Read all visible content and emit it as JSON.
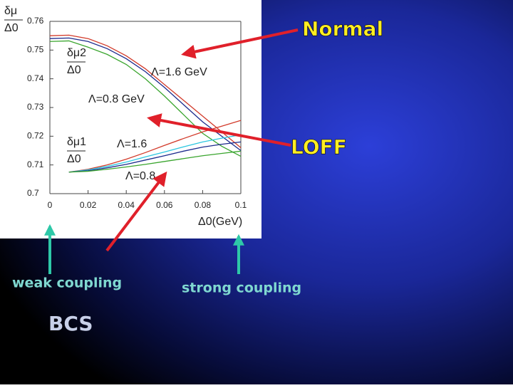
{
  "chart_data": {
    "type": "line",
    "y_label": {
      "numerator": "δμ",
      "denominator": "Δ0"
    },
    "x_label": "Δ0(GeV)",
    "x": [
      0,
      0.01,
      0.02,
      0.03,
      0.04,
      0.05,
      0.06,
      0.07,
      0.08,
      0.09,
      0.1
    ],
    "xlim": [
      0,
      0.1
    ],
    "xticks": [
      0,
      0.02,
      0.04,
      0.06,
      0.08,
      0.1
    ],
    "ylim": [
      0.7,
      0.76
    ],
    "yticks": [
      0.7,
      0.71,
      0.72,
      0.73,
      0.74,
      0.75,
      0.76
    ],
    "series": [
      {
        "color": "#d23a2a",
        "values": [
          0.755,
          0.7552,
          0.754,
          0.7515,
          0.748,
          0.7435,
          0.738,
          0.7325,
          0.727,
          0.7215,
          0.716
        ]
      },
      {
        "color": "#1c2a8c",
        "values": [
          0.754,
          0.7542,
          0.753,
          0.7505,
          0.747,
          0.7425,
          0.737,
          0.731,
          0.725,
          0.72,
          0.715
        ]
      },
      {
        "color": "#3aa52e",
        "values": [
          0.753,
          0.7532,
          0.751,
          0.7485,
          0.745,
          0.74,
          0.734,
          0.7275,
          0.721,
          0.7165,
          0.713
        ]
      },
      {
        "color": "#d23a2a",
        "values": [
          null,
          0.7075,
          0.7085,
          0.71,
          0.712,
          0.7143,
          0.7168,
          0.7192,
          0.7215,
          0.7235,
          0.7255
        ]
      },
      {
        "color": "#2cc7e0",
        "values": [
          null,
          0.7075,
          0.7083,
          0.7095,
          0.711,
          0.7128,
          0.7145,
          0.7163,
          0.718,
          0.7193,
          0.7205
        ]
      },
      {
        "color": "#1c2a8c",
        "values": [
          null,
          0.7075,
          0.708,
          0.709,
          0.7102,
          0.7117,
          0.7132,
          0.7148,
          0.7162,
          0.7172,
          0.718
        ]
      },
      {
        "color": "#3aa52e",
        "values": [
          null,
          0.7075,
          0.7078,
          0.7085,
          0.7093,
          0.7102,
          0.7112,
          0.7122,
          0.7132,
          0.714,
          0.7148
        ]
      }
    ],
    "annotations": {
      "mu2": {
        "numerator": "δμ2",
        "denominator": "Δ0"
      },
      "mu1": {
        "numerator": "δμ1",
        "denominator": "Δ0"
      },
      "lambda_16_gev": "Λ=1.6 GeV",
      "lambda_08_gev": "Λ=0.8 GeV",
      "lambda_16": "Λ=1.6",
      "lambda_08": "Λ=0.8"
    }
  },
  "slide": {
    "normal": "Normal",
    "loff": "LOFF",
    "weak": "weak coupling",
    "strong": "strong coupling",
    "bcs": "BCS"
  }
}
